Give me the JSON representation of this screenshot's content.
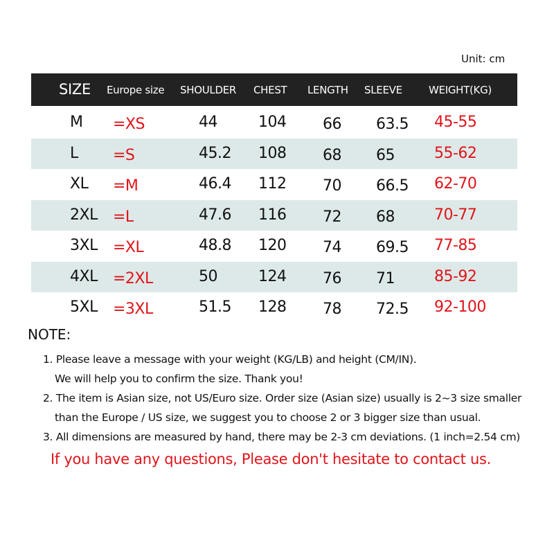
{
  "unit": "Unit: cm",
  "headers": [
    "SIZE",
    "Europe size",
    "SHOULDER",
    "CHEST",
    "LENGTH",
    "SLEEVE",
    "WEIGHT(KG)"
  ],
  "rows": [
    [
      "M",
      "=XS",
      "44",
      "104",
      "66",
      "63.5",
      "45-55"
    ],
    [
      "L",
      "=S",
      "45.2",
      "108",
      "68",
      "65",
      "55-62"
    ],
    [
      "XL",
      "=M",
      "46.4",
      "112",
      "70",
      "66.5",
      "62-70"
    ],
    [
      "2XL",
      "=L",
      "47.6",
      "116",
      "72",
      "68",
      "70-77"
    ],
    [
      "3XL",
      "=XL",
      "48.8",
      "120",
      "74",
      "69.5",
      "77-85"
    ],
    [
      "4XL",
      "=2XL",
      "50",
      "124",
      "76",
      "71",
      "85-92"
    ],
    [
      "5XL",
      "=3XL",
      "51.5",
      "128",
      "78",
      "72.5",
      "92-100"
    ]
  ],
  "colors": {
    "header_bg": "#222222",
    "alt_row_bg": "#dde9e8",
    "accent_red": "#e0141a"
  },
  "note_title": "NOTE:",
  "notes": [
    "1. Please leave a message with your weight (KG/LB) and height (CM/IN).",
    "We will help you to confirm the size. Thank you!",
    "2. The item is Asian size, not US/Euro size. Order size (Asian size) usually is  2~3 size smaller",
    "than the Europe / US size, we suggest you to choose 2 or 3 bigger size than usual.",
    "3. All dimensions are measured by hand, there may be 2-3 cm deviations. (1 inch=2.54 cm)"
  ],
  "contact": "If you have any questions, Please don't hesitate to contact us."
}
